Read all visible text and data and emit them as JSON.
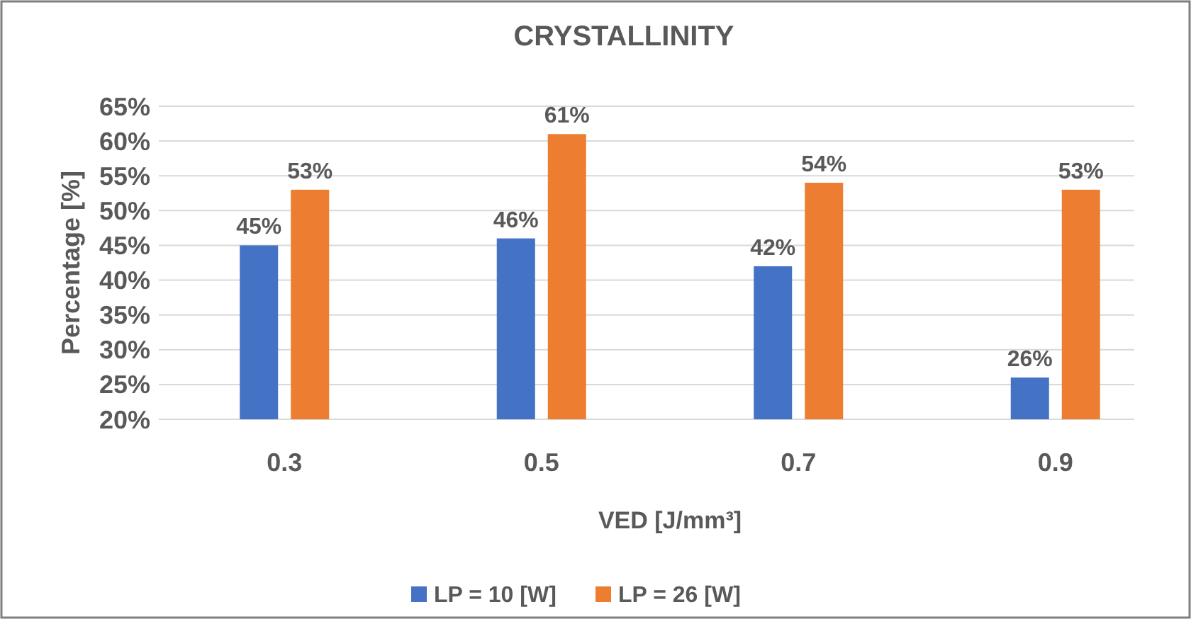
{
  "chart_data": {
    "type": "bar",
    "title": "CRYSTALLINITY",
    "xlabel": "VED [J/mm³]",
    "ylabel": "Percentage [%]",
    "categories": [
      "0.3",
      "0.5",
      "0.7",
      "0.9"
    ],
    "series": [
      {
        "name": "LP = 10 [W]",
        "color": "#4472c4",
        "values": [
          45,
          46,
          42,
          26
        ],
        "value_labels": [
          "45%",
          "46%",
          "42%",
          "26%"
        ]
      },
      {
        "name": "LP = 26 [W]",
        "color": "#ed7d31",
        "values": [
          53,
          61,
          54,
          53
        ],
        "value_labels": [
          "53%",
          "61%",
          "54%",
          "53%"
        ]
      }
    ],
    "ylim": [
      20,
      65
    ],
    "yticks": [
      {
        "value": 20,
        "label": "20%"
      },
      {
        "value": 25,
        "label": "25%"
      },
      {
        "value": 30,
        "label": "30%"
      },
      {
        "value": 35,
        "label": "35%"
      },
      {
        "value": 40,
        "label": "40%"
      },
      {
        "value": 45,
        "label": "45%"
      },
      {
        "value": 50,
        "label": "50%"
      },
      {
        "value": 55,
        "label": "55%"
      },
      {
        "value": 60,
        "label": "60%"
      },
      {
        "value": 65,
        "label": "65%"
      }
    ],
    "grid": "y",
    "legend": "bottom"
  }
}
